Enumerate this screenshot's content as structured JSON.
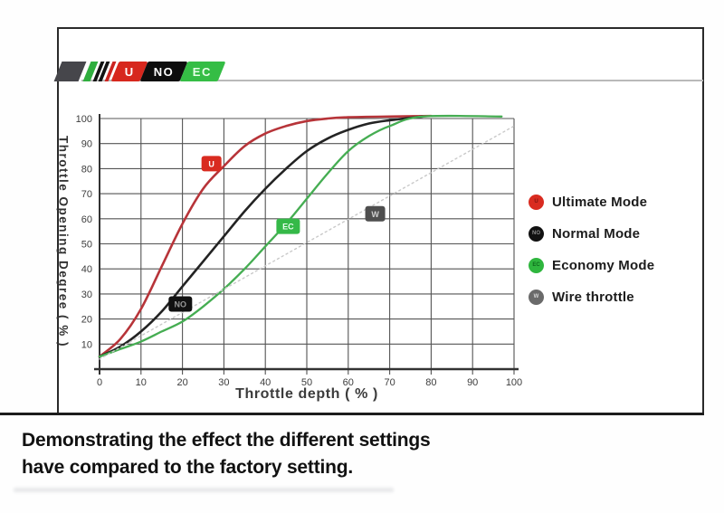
{
  "banner": {
    "blocks": [
      {
        "label": "U",
        "color": "#d7271d"
      },
      {
        "label": "NO",
        "color": "#0d0d0d"
      },
      {
        "label": "EC",
        "color": "#35bd45"
      }
    ]
  },
  "chart_data": {
    "type": "line",
    "title": "",
    "xlabel": "Throttle depth ( % )",
    "ylabel": "Throttle Opening Degree ( % )",
    "xlim": [
      0,
      100
    ],
    "ylim": [
      0,
      100
    ],
    "grid": true,
    "legend_position": "right",
    "x_ticks": [
      0,
      10,
      20,
      30,
      40,
      50,
      60,
      70,
      80,
      90,
      100
    ],
    "y_ticks": [
      10,
      20,
      30,
      40,
      50,
      60,
      70,
      80,
      90,
      100
    ],
    "series": [
      {
        "name": "Ultimate Mode",
        "color": "#b73439",
        "style": "solid",
        "width": 2.6,
        "points": [
          [
            0,
            5
          ],
          [
            5,
            12
          ],
          [
            10,
            24
          ],
          [
            15,
            41
          ],
          [
            20,
            58
          ],
          [
            25,
            72
          ],
          [
            30,
            81
          ],
          [
            35,
            89
          ],
          [
            40,
            94
          ],
          [
            45,
            97
          ],
          [
            50,
            99
          ],
          [
            55,
            100
          ],
          [
            60,
            100.5
          ],
          [
            70,
            100.8
          ],
          [
            80,
            101
          ]
        ]
      },
      {
        "name": "Normal Mode",
        "color": "#232323",
        "style": "solid",
        "width": 2.6,
        "points": [
          [
            0,
            5
          ],
          [
            5,
            9
          ],
          [
            10,
            15
          ],
          [
            15,
            23
          ],
          [
            20,
            33
          ],
          [
            25,
            43
          ],
          [
            30,
            53
          ],
          [
            35,
            63
          ],
          [
            40,
            72
          ],
          [
            45,
            80
          ],
          [
            50,
            87
          ],
          [
            55,
            92
          ],
          [
            60,
            95.5
          ],
          [
            65,
            98
          ],
          [
            70,
            99.3
          ],
          [
            78,
            100.8
          ]
        ]
      },
      {
        "name": "Economy Mode",
        "color": "#45ad52",
        "style": "solid",
        "width": 2.3,
        "points": [
          [
            0,
            5
          ],
          [
            5,
            8
          ],
          [
            10,
            11
          ],
          [
            15,
            15
          ],
          [
            20,
            19
          ],
          [
            25,
            25
          ],
          [
            30,
            32
          ],
          [
            35,
            40
          ],
          [
            40,
            49
          ],
          [
            45,
            58
          ],
          [
            50,
            68
          ],
          [
            55,
            78
          ],
          [
            60,
            87
          ],
          [
            65,
            93
          ],
          [
            70,
            97
          ],
          [
            78,
            100.8
          ],
          [
            97,
            100.8
          ]
        ]
      },
      {
        "name": "Wire throttle",
        "color": "#c9c9c9",
        "style": "dotted",
        "width": 1.4,
        "points": [
          [
            0,
            4
          ],
          [
            100,
            97
          ]
        ]
      }
    ],
    "badges": [
      {
        "label": "U",
        "x": 27,
        "y": 82,
        "bg": "#d92b20",
        "fg": "#ffffff"
      },
      {
        "label": "NO",
        "x": 19.5,
        "y": 26,
        "bg": "#111111",
        "fg": "#9a9a9a"
      },
      {
        "label": "EC",
        "x": 45.5,
        "y": 57,
        "bg": "#35b948",
        "fg": "#eafff0"
      },
      {
        "label": "W",
        "x": 66.5,
        "y": 62,
        "bg": "#4e4e4e",
        "fg": "#d0d0d0"
      }
    ]
  },
  "legend": {
    "items": [
      {
        "badge": "U",
        "badge_color": "#d92b20",
        "badge_text_color": "#7e1410",
        "label": "Ultimate Mode"
      },
      {
        "badge": "NO",
        "badge_color": "#111111",
        "badge_text_color": "#8a8a8a",
        "label": "Normal Mode"
      },
      {
        "badge": "EC",
        "badge_color": "#2fb63e",
        "badge_text_color": "#0f6b1d",
        "label": "Economy Mode"
      },
      {
        "badge": "W",
        "badge_color": "#6a6a6a",
        "badge_text_color": "#d6d6d6",
        "label": "Wire throttle"
      }
    ]
  },
  "caption": {
    "line1": "Demonstrating the effect the different settings",
    "line2": "have compared to the factory setting."
  }
}
